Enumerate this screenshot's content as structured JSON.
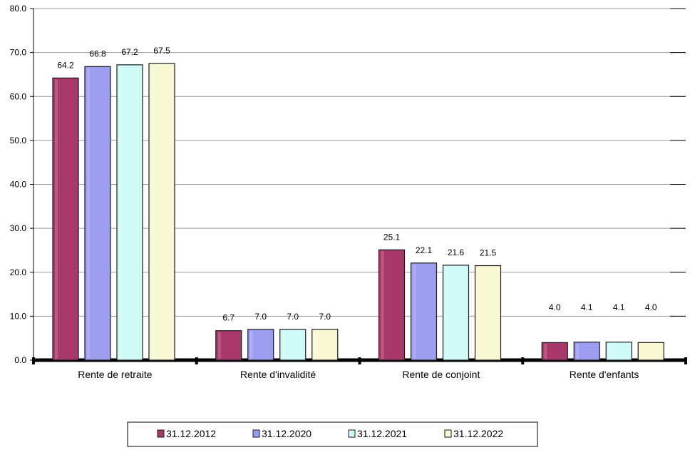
{
  "chart_data": {
    "type": "bar",
    "title": "",
    "xlabel": "",
    "ylabel": "",
    "ylim": [
      0,
      80
    ],
    "yticks": [
      "0.0",
      "10.0",
      "20.0",
      "30.0",
      "40.0",
      "50.0",
      "60.0",
      "70.0",
      "80.0"
    ],
    "grid": true,
    "legend_position": "bottom",
    "categories": [
      "Rente de retraite",
      "Rente d'invalidité",
      "Rente de conjoint",
      "Rente d'enfants"
    ],
    "series": [
      {
        "name": "31.12.2012",
        "color": "#A8386A",
        "values": [
          64.2,
          6.7,
          25.1,
          4.0
        ],
        "labels": [
          "64.2",
          "6.7",
          "25.1",
          "4.0"
        ]
      },
      {
        "name": "31.12.2020",
        "color": "#9C9CF0",
        "values": [
          66.8,
          7.0,
          22.1,
          4.1
        ],
        "labels": [
          "66.8",
          "7.0",
          "22.1",
          "4.1"
        ]
      },
      {
        "name": "31.12.2021",
        "color": "#CFFAF8",
        "values": [
          67.2,
          7.0,
          21.6,
          4.1
        ],
        "labels": [
          "67.2",
          "7.0",
          "21.6",
          "4.1"
        ]
      },
      {
        "name": "31.12.2022",
        "color": "#F8F8D2",
        "values": [
          67.5,
          7.0,
          21.5,
          4.0
        ],
        "labels": [
          "67.5",
          "7.0",
          "21.5",
          "4.0"
        ]
      }
    ]
  }
}
